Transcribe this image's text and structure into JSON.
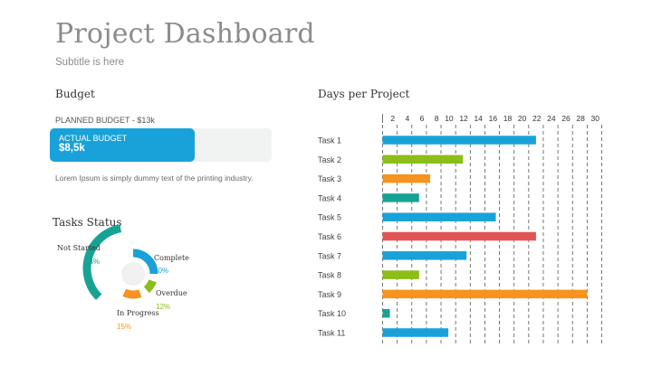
{
  "header": {
    "title": "Project Dashboard",
    "subtitle": "Subtitle is here"
  },
  "budget": {
    "heading": "Budget",
    "planned_label": "PLANNED BUDGET -  $13k",
    "actual_label": "ACTUAL BUDGET",
    "actual_value": "$8,5k",
    "planned": 13,
    "actual": 8.5,
    "note": "Lorem Ipsum is simply dummy text of the printing industry."
  },
  "tasks_status": {
    "heading": "Tasks Status",
    "segments": [
      {
        "name": "Complete",
        "percent_label": "30%",
        "value": 30,
        "color": "#19a2d9"
      },
      {
        "name": "Overdue",
        "percent_label": "12%",
        "value": 12,
        "color": "#8cbd18"
      },
      {
        "name": "In Progress",
        "percent_label": "15%",
        "value": 15,
        "color": "#f7931e"
      },
      {
        "name": "Not Started",
        "percent_label": "44%",
        "value": 44,
        "color": "#17a394"
      }
    ]
  },
  "chart_data": {
    "type": "bar",
    "orientation": "horizontal",
    "title": "Days per Project",
    "categories": [
      "Task 1",
      "Task 2",
      "Task 3",
      "Task 4",
      "Task 5",
      "Task 6",
      "Task 7",
      "Task 8",
      "Task 9",
      "Task 10",
      "Task 11"
    ],
    "values": [
      21,
      11,
      6.5,
      5,
      15.5,
      21,
      11.5,
      5,
      28,
      1,
      9
    ],
    "colors": [
      "#19a2d9",
      "#8cbd18",
      "#f7931e",
      "#17a394",
      "#19a2d9",
      "#e15655",
      "#19a2d9",
      "#8cbd18",
      "#f7931e",
      "#17a394",
      "#19a2d9"
    ],
    "xticks": [
      2,
      4,
      6,
      8,
      10,
      12,
      14,
      16,
      18,
      20,
      22,
      24,
      26,
      28,
      30
    ],
    "xlim": [
      0,
      30
    ],
    "xaxis_position": "top",
    "grid": "vertical-dashed"
  }
}
